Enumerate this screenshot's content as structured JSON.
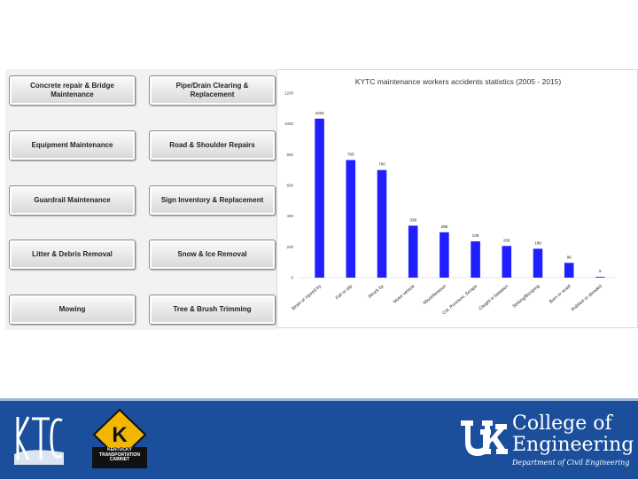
{
  "buttons": [
    {
      "label": "Concrete repair & Bridge Maintenance"
    },
    {
      "label": "Pipe/Drain Clearing & Replacement"
    },
    {
      "label": "Equipment Maintenance"
    },
    {
      "label": "Road & Shoulder Repairs"
    },
    {
      "label": "Guardrail Maintenance"
    },
    {
      "label": "Sign Inventory & Replacement"
    },
    {
      "label": "Litter & Debris Removal"
    },
    {
      "label": "Snow & Ice Removal"
    },
    {
      "label": "Mowing"
    },
    {
      "label": "Tree & Brush Trimming"
    }
  ],
  "chart_data": {
    "type": "bar",
    "title": "KYTC maintenance workers accidents statistics (2005 - 2015)",
    "categories": [
      "Strain or injured by",
      "Fall or slip",
      "Struck by",
      "Motor vehicle",
      "Miscellaneous",
      "Cut, Puncture, Scrape",
      "Caught in between",
      "Striking/Bumping",
      "Burn or scald",
      "Rubbed or abraded"
    ],
    "values": [
      1034,
      765,
      700,
      338,
      295,
      236,
      206,
      188,
      96,
      5
    ],
    "data_labels": [
      "1034",
      "765",
      "700",
      "338",
      "295",
      "236",
      "206",
      "188",
      "96",
      "5"
    ],
    "yticks": [
      "0",
      "200",
      "400",
      "600",
      "800",
      "1000",
      "1200"
    ],
    "ylim": [
      0,
      1200
    ],
    "color": "#1f1fff",
    "xlabel": "",
    "ylabel": ""
  },
  "footer": {
    "kytc_sign_letter": "K",
    "kytc_name": "KENTUCKY TRANSPORTATION CABINET",
    "college_line1": "College of",
    "college_line2": "Engineering",
    "department": "Department of Civil Engineering",
    "colors": {
      "band": "#1b4f9c",
      "sign": "#f2b705"
    }
  }
}
